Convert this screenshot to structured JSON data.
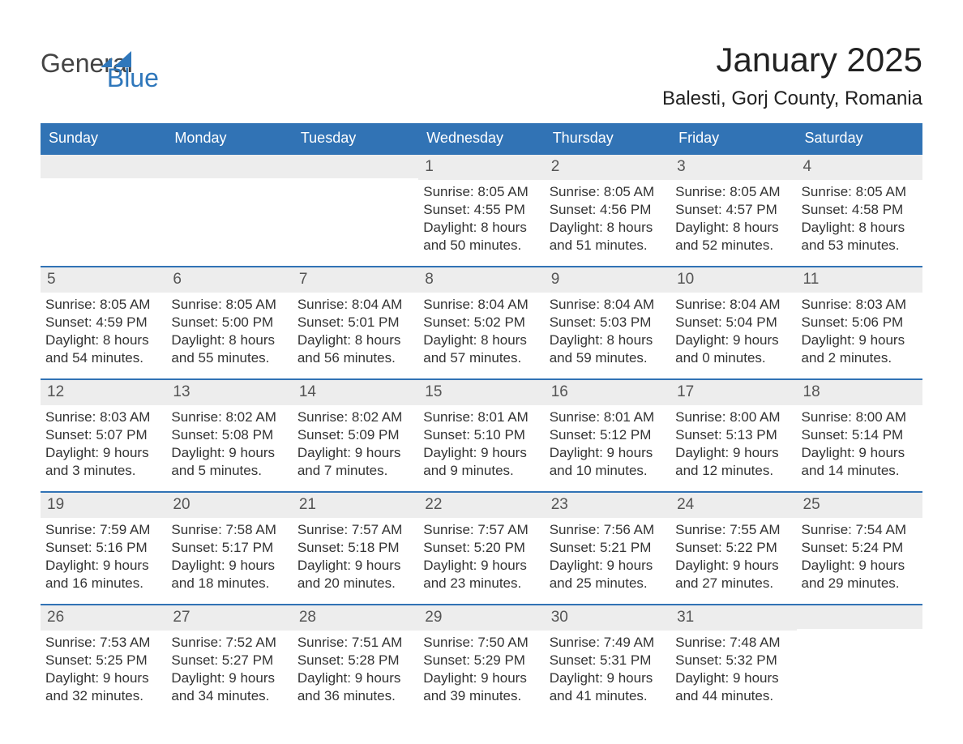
{
  "logo": {
    "word1": "General",
    "word2": "Blue",
    "icon_color": "#2f77bb"
  },
  "title": "January 2025",
  "location": "Balesti, Gorj County, Romania",
  "colors": {
    "header_bg": "#3173b5",
    "header_text": "#ffffff",
    "daynum_bg": "#ededed",
    "text": "#333333",
    "border": "#3173b5"
  },
  "fonts": {
    "title_size": 42,
    "location_size": 24,
    "header_size": 18,
    "body_size": 17
  },
  "day_headers": [
    "Sunday",
    "Monday",
    "Tuesday",
    "Wednesday",
    "Thursday",
    "Friday",
    "Saturday"
  ],
  "weeks": [
    [
      null,
      null,
      null,
      {
        "n": "1",
        "sr": "Sunrise: 8:05 AM",
        "ss": "Sunset: 4:55 PM",
        "d1": "Daylight: 8 hours",
        "d2": "and 50 minutes."
      },
      {
        "n": "2",
        "sr": "Sunrise: 8:05 AM",
        "ss": "Sunset: 4:56 PM",
        "d1": "Daylight: 8 hours",
        "d2": "and 51 minutes."
      },
      {
        "n": "3",
        "sr": "Sunrise: 8:05 AM",
        "ss": "Sunset: 4:57 PM",
        "d1": "Daylight: 8 hours",
        "d2": "and 52 minutes."
      },
      {
        "n": "4",
        "sr": "Sunrise: 8:05 AM",
        "ss": "Sunset: 4:58 PM",
        "d1": "Daylight: 8 hours",
        "d2": "and 53 minutes."
      }
    ],
    [
      {
        "n": "5",
        "sr": "Sunrise: 8:05 AM",
        "ss": "Sunset: 4:59 PM",
        "d1": "Daylight: 8 hours",
        "d2": "and 54 minutes."
      },
      {
        "n": "6",
        "sr": "Sunrise: 8:05 AM",
        "ss": "Sunset: 5:00 PM",
        "d1": "Daylight: 8 hours",
        "d2": "and 55 minutes."
      },
      {
        "n": "7",
        "sr": "Sunrise: 8:04 AM",
        "ss": "Sunset: 5:01 PM",
        "d1": "Daylight: 8 hours",
        "d2": "and 56 minutes."
      },
      {
        "n": "8",
        "sr": "Sunrise: 8:04 AM",
        "ss": "Sunset: 5:02 PM",
        "d1": "Daylight: 8 hours",
        "d2": "and 57 minutes."
      },
      {
        "n": "9",
        "sr": "Sunrise: 8:04 AM",
        "ss": "Sunset: 5:03 PM",
        "d1": "Daylight: 8 hours",
        "d2": "and 59 minutes."
      },
      {
        "n": "10",
        "sr": "Sunrise: 8:04 AM",
        "ss": "Sunset: 5:04 PM",
        "d1": "Daylight: 9 hours",
        "d2": "and 0 minutes."
      },
      {
        "n": "11",
        "sr": "Sunrise: 8:03 AM",
        "ss": "Sunset: 5:06 PM",
        "d1": "Daylight: 9 hours",
        "d2": "and 2 minutes."
      }
    ],
    [
      {
        "n": "12",
        "sr": "Sunrise: 8:03 AM",
        "ss": "Sunset: 5:07 PM",
        "d1": "Daylight: 9 hours",
        "d2": "and 3 minutes."
      },
      {
        "n": "13",
        "sr": "Sunrise: 8:02 AM",
        "ss": "Sunset: 5:08 PM",
        "d1": "Daylight: 9 hours",
        "d2": "and 5 minutes."
      },
      {
        "n": "14",
        "sr": "Sunrise: 8:02 AM",
        "ss": "Sunset: 5:09 PM",
        "d1": "Daylight: 9 hours",
        "d2": "and 7 minutes."
      },
      {
        "n": "15",
        "sr": "Sunrise: 8:01 AM",
        "ss": "Sunset: 5:10 PM",
        "d1": "Daylight: 9 hours",
        "d2": "and 9 minutes."
      },
      {
        "n": "16",
        "sr": "Sunrise: 8:01 AM",
        "ss": "Sunset: 5:12 PM",
        "d1": "Daylight: 9 hours",
        "d2": "and 10 minutes."
      },
      {
        "n": "17",
        "sr": "Sunrise: 8:00 AM",
        "ss": "Sunset: 5:13 PM",
        "d1": "Daylight: 9 hours",
        "d2": "and 12 minutes."
      },
      {
        "n": "18",
        "sr": "Sunrise: 8:00 AM",
        "ss": "Sunset: 5:14 PM",
        "d1": "Daylight: 9 hours",
        "d2": "and 14 minutes."
      }
    ],
    [
      {
        "n": "19",
        "sr": "Sunrise: 7:59 AM",
        "ss": "Sunset: 5:16 PM",
        "d1": "Daylight: 9 hours",
        "d2": "and 16 minutes."
      },
      {
        "n": "20",
        "sr": "Sunrise: 7:58 AM",
        "ss": "Sunset: 5:17 PM",
        "d1": "Daylight: 9 hours",
        "d2": "and 18 minutes."
      },
      {
        "n": "21",
        "sr": "Sunrise: 7:57 AM",
        "ss": "Sunset: 5:18 PM",
        "d1": "Daylight: 9 hours",
        "d2": "and 20 minutes."
      },
      {
        "n": "22",
        "sr": "Sunrise: 7:57 AM",
        "ss": "Sunset: 5:20 PM",
        "d1": "Daylight: 9 hours",
        "d2": "and 23 minutes."
      },
      {
        "n": "23",
        "sr": "Sunrise: 7:56 AM",
        "ss": "Sunset: 5:21 PM",
        "d1": "Daylight: 9 hours",
        "d2": "and 25 minutes."
      },
      {
        "n": "24",
        "sr": "Sunrise: 7:55 AM",
        "ss": "Sunset: 5:22 PM",
        "d1": "Daylight: 9 hours",
        "d2": "and 27 minutes."
      },
      {
        "n": "25",
        "sr": "Sunrise: 7:54 AM",
        "ss": "Sunset: 5:24 PM",
        "d1": "Daylight: 9 hours",
        "d2": "and 29 minutes."
      }
    ],
    [
      {
        "n": "26",
        "sr": "Sunrise: 7:53 AM",
        "ss": "Sunset: 5:25 PM",
        "d1": "Daylight: 9 hours",
        "d2": "and 32 minutes."
      },
      {
        "n": "27",
        "sr": "Sunrise: 7:52 AM",
        "ss": "Sunset: 5:27 PM",
        "d1": "Daylight: 9 hours",
        "d2": "and 34 minutes."
      },
      {
        "n": "28",
        "sr": "Sunrise: 7:51 AM",
        "ss": "Sunset: 5:28 PM",
        "d1": "Daylight: 9 hours",
        "d2": "and 36 minutes."
      },
      {
        "n": "29",
        "sr": "Sunrise: 7:50 AM",
        "ss": "Sunset: 5:29 PM",
        "d1": "Daylight: 9 hours",
        "d2": "and 39 minutes."
      },
      {
        "n": "30",
        "sr": "Sunrise: 7:49 AM",
        "ss": "Sunset: 5:31 PM",
        "d1": "Daylight: 9 hours",
        "d2": "and 41 minutes."
      },
      {
        "n": "31",
        "sr": "Sunrise: 7:48 AM",
        "ss": "Sunset: 5:32 PM",
        "d1": "Daylight: 9 hours",
        "d2": "and 44 minutes."
      },
      null
    ]
  ]
}
